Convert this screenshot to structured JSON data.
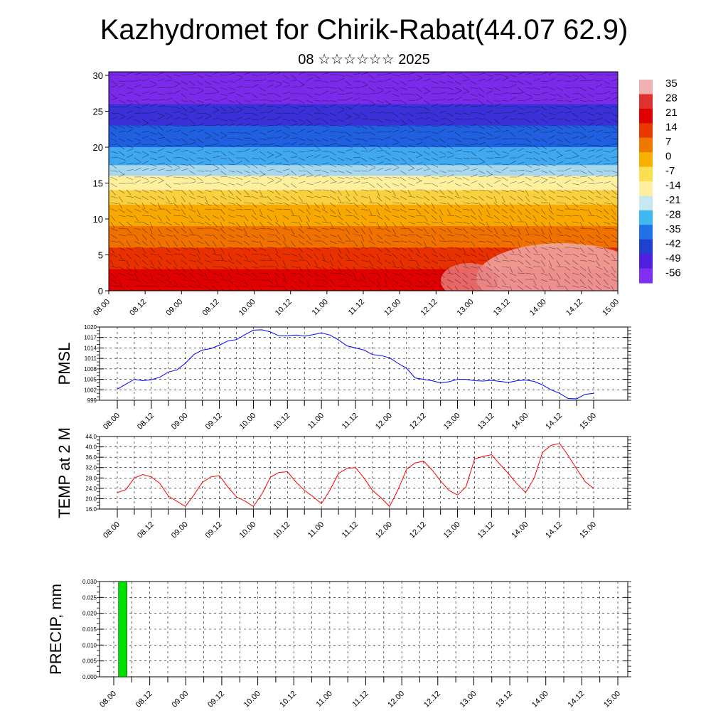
{
  "title": "Kazhydromet for Chirik-Rabat(44.07 62.9)",
  "subtitle": "08 ☆☆☆☆☆☆ 2025",
  "colors": {
    "pmsl_line": "#0000ff",
    "temp_line": "#ff0000",
    "precip_bar": "#00e000"
  },
  "chart_data": [
    {
      "id": "cross_section",
      "type": "heatmap",
      "description_free": true,
      "x_ticks": [
        "08.00",
        "08.12",
        "09.00",
        "09.12",
        "10.00",
        "10.12",
        "11.00",
        "11.12",
        "12.00",
        "12.12",
        "13.00",
        "13.12",
        "14.00",
        "14.12",
        "15.00"
      ],
      "y_ticks": [
        0,
        5,
        10,
        15,
        20,
        25,
        30
      ],
      "ylim": [
        0,
        30.5
      ],
      "colorbar": {
        "labels": [
          "35",
          "28",
          "21",
          "14",
          "7",
          "0",
          "-7",
          "-14",
          "-21",
          "-28",
          "-35",
          "-42",
          "-49",
          "-56"
        ],
        "stops": [
          "#f0b0b0",
          "#e03030",
          "#e00000",
          "#e83800",
          "#f07800",
          "#f8b000",
          "#f8e050",
          "#fff0a0",
          "#c8e8f0",
          "#40b8f0",
          "#2070e8",
          "#2040d0",
          "#5020e0",
          "#8030f0"
        ]
      },
      "levels": [
        {
          "top": 30.5,
          "color": "#7a2ae8"
        },
        {
          "top": 26,
          "color": "#3a30d8"
        },
        {
          "top": 23,
          "color": "#2060e0"
        },
        {
          "top": 20,
          "color": "#40a8f0"
        },
        {
          "top": 17.5,
          "color": "#a8d8f0"
        },
        {
          "top": 16,
          "color": "#fff0a0"
        },
        {
          "top": 14,
          "color": "#f8d040"
        },
        {
          "top": 12,
          "color": "#f8a800"
        },
        {
          "top": 9,
          "color": "#f07000"
        },
        {
          "top": 6,
          "color": "#e83000"
        },
        {
          "top": 3,
          "color": "#e00000"
        }
      ]
    },
    {
      "id": "pmsl",
      "type": "line",
      "ylabel": "PMSL",
      "ylim": [
        999,
        1020
      ],
      "y_ticks": [
        "1020",
        "1017",
        "1014",
        "1011",
        "1008",
        "1005",
        "1002",
        "999"
      ],
      "x_ticks": [
        "08.00",
        "08.12",
        "09.00",
        "09.12",
        "10.00",
        "10.12",
        "11.00",
        "11.12",
        "12.00",
        "12.12",
        "13.00",
        "13.12",
        "14.00",
        "14.12",
        "15.00"
      ],
      "series": [
        {
          "x_hours": [
            0,
            3,
            6,
            9,
            12,
            15,
            18,
            21,
            24,
            27,
            30,
            33,
            36,
            39,
            42,
            45,
            48,
            51,
            54,
            57,
            60,
            63,
            66,
            69,
            72,
            75,
            78,
            81,
            84,
            87,
            90,
            93,
            96,
            99,
            102,
            105,
            108,
            111,
            114,
            117,
            120,
            123,
            126,
            129,
            132,
            135,
            138,
            141,
            144,
            147,
            150,
            153,
            156,
            159,
            162,
            165,
            168
          ],
          "values": [
            1002.2,
            1003.6,
            1005.0,
            1004.6,
            1004.9,
            1005.6,
            1007.1,
            1007.7,
            1009.6,
            1012.1,
            1013.4,
            1013.8,
            1014.8,
            1016.0,
            1016.4,
            1017.8,
            1019.1,
            1019.2,
            1018.6,
            1017.5,
            1017.5,
            1017.7,
            1017.4,
            1017.8,
            1018.3,
            1017.7,
            1016.3,
            1014.6,
            1014.0,
            1013.4,
            1012.1,
            1011.8,
            1011.2,
            1009.6,
            1008.2,
            1005.4,
            1005.0,
            1004.6,
            1004.0,
            1004.3,
            1005.0,
            1005.0,
            1004.6,
            1004.5,
            1004.7,
            1004.4,
            1004.1,
            1004.6,
            1004.8,
            1004.4,
            1003.4,
            1002.0,
            1001.0,
            999.5,
            999.4,
            1000.7,
            1001.0
          ]
        }
      ]
    },
    {
      "id": "temp",
      "type": "line",
      "ylabel": "TEMP at 2 M",
      "ylim": [
        16.0,
        44.0
      ],
      "y_ticks": [
        "44.0",
        "40.0",
        "36.0",
        "32.0",
        "28.0",
        "24.0",
        "20.0",
        "16.0"
      ],
      "x_ticks": [
        "08.00",
        "08.12",
        "09.00",
        "09.12",
        "10.00",
        "10.12",
        "11.00",
        "11.12",
        "12.00",
        "12.12",
        "13.00",
        "13.12",
        "14.00",
        "14.12",
        "15.00"
      ],
      "series": [
        {
          "x_hours": [
            0,
            3,
            6,
            9,
            12,
            15,
            18,
            21,
            24,
            27,
            30,
            33,
            36,
            39,
            42,
            45,
            48,
            51,
            54,
            57,
            60,
            63,
            66,
            69,
            72,
            75,
            78,
            81,
            84,
            87,
            90,
            93,
            96,
            99,
            102,
            105,
            108,
            111,
            114,
            117,
            120,
            123,
            126,
            129,
            132,
            135,
            138,
            141,
            144,
            147,
            150,
            153,
            156,
            159,
            162,
            165,
            168
          ],
          "values": [
            22.3,
            23.5,
            28.0,
            29.3,
            28.4,
            25.9,
            21.0,
            19.0,
            17.0,
            21.4,
            26.3,
            28.4,
            28.9,
            24.5,
            20.7,
            19.1,
            17.0,
            21.8,
            28.3,
            30.1,
            30.4,
            26.4,
            23.2,
            20.8,
            18.1,
            23.3,
            29.7,
            31.7,
            32.0,
            28.0,
            23.2,
            20.4,
            17.0,
            23.4,
            31.3,
            33.8,
            34.5,
            31.1,
            26.9,
            23.2,
            21.4,
            24.6,
            35.3,
            36.3,
            37.0,
            33.2,
            29.6,
            25.7,
            22.4,
            27.9,
            37.9,
            40.6,
            41.3,
            36.7,
            31.5,
            26.6,
            23.9
          ]
        }
      ]
    },
    {
      "id": "precip",
      "type": "bar",
      "ylabel": "PRECIP, mm",
      "ylim": [
        0.0,
        0.03
      ],
      "y_ticks": [
        "0.030",
        "0.025",
        "0.020",
        "0.015",
        "0.010",
        "0.005",
        "0.000"
      ],
      "x_ticks": [
        "08.00",
        "08.12",
        "09.00",
        "09.12",
        "10.00",
        "10.12",
        "11.00",
        "11.12",
        "12.00",
        "12.12",
        "13.00",
        "13.12",
        "14.00",
        "14.12",
        "15.00"
      ],
      "series": [
        {
          "x_hours": [
            3
          ],
          "values": [
            0.03
          ]
        }
      ]
    }
  ]
}
